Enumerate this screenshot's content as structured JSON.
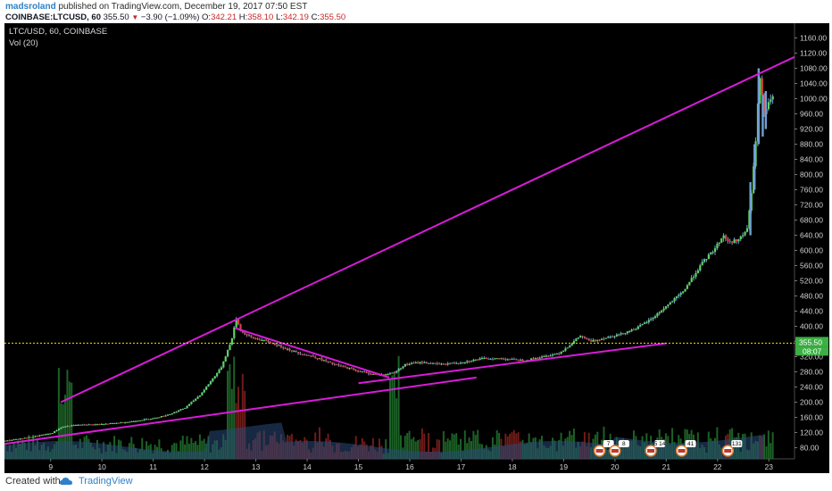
{
  "header": {
    "username": "madsroland",
    "published_text": "published on TradingView.com, December 19, 2017 07:50 EST"
  },
  "quote": {
    "symbol": "COINBASE:LTCUSD, 60",
    "last": "355.50",
    "change": "−3.90 (−1.09%)",
    "open_label": "O:",
    "open": "342.21",
    "high_label": "H:",
    "high": "358.10",
    "low_label": "L:",
    "low": "342.19",
    "close_label": "C:",
    "close": "355.50"
  },
  "legend": {
    "symbol_line": "LTC/USD, 60, COINBASE",
    "volume_line": "Vol (20)"
  },
  "footer": {
    "created_with": "Created with",
    "brand": "TradingView"
  },
  "colors": {
    "background": "#000000",
    "up": "#5fd35f",
    "down": "#e0413a",
    "wick": "#6f9fd3",
    "trendline": "#d81cd8",
    "price_line": "#f2e500",
    "price_label_bg": "#3cb043"
  },
  "chart_data": {
    "type": "candlestick",
    "title": "LTC/USD, 60, COINBASE",
    "timeframe": "60",
    "x_tick_labels": [
      "9",
      "10",
      "11",
      "12",
      "13",
      "14",
      "15",
      "16",
      "17",
      "18",
      "19",
      "20",
      "21",
      "22",
      "23"
    ],
    "y_tick_labels": [
      "80.00",
      "120.00",
      "160.00",
      "200.00",
      "240.00",
      "280.00",
      "320.00",
      "360.00",
      "400.00",
      "440.00",
      "480.00",
      "520.00",
      "560.00",
      "600.00",
      "640.00",
      "680.00",
      "720.00",
      "760.00",
      "800.00",
      "840.00",
      "880.00",
      "920.00",
      "960.00",
      "1000.00",
      "1040.00",
      "1080.00",
      "1120.00",
      "1160.00"
    ],
    "ylim": [
      60,
      1180
    ],
    "xlim": [
      8.1,
      23.5
    ],
    "last_price": 355.5,
    "last_price_label": "355.50",
    "countdown_label": "08:07",
    "price_path": [
      [
        8.1,
        98
      ],
      [
        8.6,
        108
      ],
      [
        9.0,
        118
      ],
      [
        9.2,
        135
      ],
      [
        9.5,
        140
      ],
      [
        10.0,
        142
      ],
      [
        10.5,
        148
      ],
      [
        11.0,
        158
      ],
      [
        11.3,
        168
      ],
      [
        11.6,
        185
      ],
      [
        11.9,
        220
      ],
      [
        12.1,
        255
      ],
      [
        12.3,
        290
      ],
      [
        12.5,
        360
      ],
      [
        12.6,
        420
      ],
      [
        12.7,
        385
      ],
      [
        12.9,
        370
      ],
      [
        13.2,
        360
      ],
      [
        13.5,
        345
      ],
      [
        13.8,
        330
      ],
      [
        14.1,
        320
      ],
      [
        14.5,
        300
      ],
      [
        14.9,
        285
      ],
      [
        15.2,
        275
      ],
      [
        15.5,
        272
      ],
      [
        15.7,
        280
      ],
      [
        15.9,
        300
      ],
      [
        16.2,
        305
      ],
      [
        16.6,
        300
      ],
      [
        17.0,
        305
      ],
      [
        17.4,
        315
      ],
      [
        17.8,
        315
      ],
      [
        18.2,
        310
      ],
      [
        18.6,
        320
      ],
      [
        18.9,
        330
      ],
      [
        19.1,
        350
      ],
      [
        19.3,
        375
      ],
      [
        19.5,
        360
      ],
      [
        19.8,
        370
      ],
      [
        20.1,
        380
      ],
      [
        20.4,
        395
      ],
      [
        20.7,
        420
      ],
      [
        21.0,
        455
      ],
      [
        21.3,
        490
      ],
      [
        21.5,
        530
      ],
      [
        21.7,
        570
      ],
      [
        21.9,
        600
      ],
      [
        22.1,
        640
      ],
      [
        22.2,
        620
      ],
      [
        22.4,
        630
      ],
      [
        22.55,
        650
      ],
      [
        22.65,
        760
      ],
      [
        22.72,
        880
      ],
      [
        22.8,
        1060
      ],
      [
        22.9,
        950
      ],
      [
        23.0,
        1000
      ]
    ],
    "trendlines": [
      {
        "name": "upper-resistance",
        "from": [
          9.2,
          200
        ],
        "to": [
          23.5,
          1110
        ]
      },
      {
        "name": "long-support",
        "from": [
          8.1,
          90
        ],
        "to": [
          17.3,
          265
        ]
      },
      {
        "name": "triangle-top",
        "from": [
          12.6,
          395
        ],
        "to": [
          15.6,
          265
        ]
      },
      {
        "name": "triangle-base",
        "from": [
          15.0,
          250
        ],
        "to": [
          21.0,
          355
        ]
      }
    ],
    "volume": {
      "label": "Vol (20)",
      "events_x": [
        19.7,
        20.0,
        20.7,
        21.3,
        22.2
      ],
      "event_labels": [
        "7",
        "8",
        "5 14",
        "41",
        "131"
      ]
    }
  }
}
